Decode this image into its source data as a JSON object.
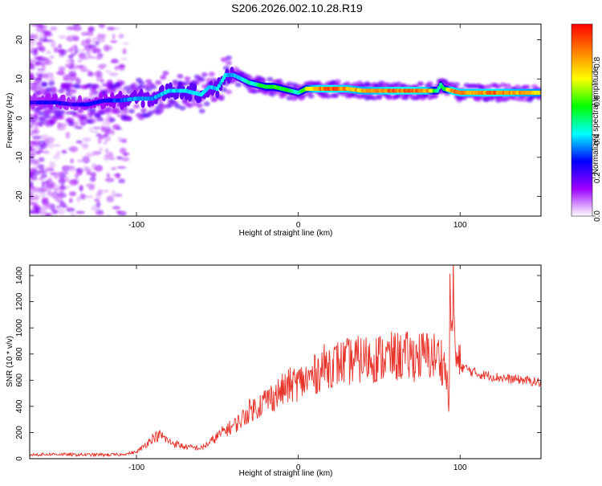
{
  "title": "S206.2026.002.10.28.R19",
  "chart_data": [
    {
      "type": "heatmap",
      "xlabel": "Height of straight line (km)",
      "ylabel": "Frequency (Hz)",
      "xlim": [
        -166,
        150
      ],
      "ylim": [
        -25,
        24
      ],
      "xticks": [
        "-100",
        "0",
        "100"
      ],
      "xtick_values": [
        -100,
        0,
        100
      ],
      "yticks": [
        "20",
        "10",
        "0",
        "-10",
        "-20"
      ],
      "ytick_values": [
        20,
        10,
        0,
        -10,
        -20
      ],
      "colorbar": {
        "label": "Normalized spectral amplitude",
        "range": [
          0,
          1
        ],
        "ticks": [
          "0.0",
          "0.2",
          "0.4",
          "0.6",
          "0.8"
        ],
        "tick_values": [
          0,
          0.2,
          0.4,
          0.6,
          0.8
        ],
        "colormap": [
          "#ffffff",
          "#9d00ff",
          "#0000ff",
          "#00ffff",
          "#00ff00",
          "#ffff00",
          "#ff8000",
          "#ff0000"
        ]
      },
      "ridge": {
        "x": [
          -166,
          -150,
          -140,
          -130,
          -120,
          -110,
          -100,
          -90,
          -80,
          -70,
          -60,
          -55,
          -50,
          -45,
          -40,
          -35,
          -30,
          -25,
          -20,
          -15,
          -10,
          -5,
          0,
          5,
          10,
          20,
          30,
          40,
          50,
          60,
          70,
          80,
          86,
          88,
          90,
          95,
          100,
          110,
          120,
          130,
          140,
          150
        ],
        "y": [
          4,
          4,
          3.5,
          3.5,
          4.5,
          4.5,
          5,
          5,
          7,
          7,
          6,
          8,
          7.5,
          11,
          11,
          10,
          9,
          8.5,
          8,
          8,
          7.5,
          7,
          6.5,
          7.5,
          7.5,
          7.5,
          7.5,
          7,
          7,
          7,
          7,
          7,
          7,
          8.5,
          7.5,
          7,
          6.5,
          6.5,
          6.5,
          6.5,
          6.5,
          6.5
        ],
        "amp": [
          0.25,
          0.3,
          0.25,
          0.3,
          0.3,
          0.35,
          0.4,
          0.4,
          0.45,
          0.45,
          0.45,
          0.4,
          0.45,
          0.45,
          0.4,
          0.45,
          0.5,
          0.55,
          0.6,
          0.65,
          0.6,
          0.55,
          0.5,
          0.7,
          0.9,
          0.95,
          0.9,
          0.85,
          0.9,
          0.95,
          0.95,
          0.9,
          0.5,
          0.55,
          0.55,
          0.95,
          0.9,
          0.9,
          0.95,
          0.9,
          0.85,
          0.8
        ]
      }
    },
    {
      "type": "line",
      "xlabel": "Height of straight line (km)",
      "ylabel": "SNR (10 * v/v)",
      "xlim": [
        -166,
        150
      ],
      "ylim": [
        0,
        1480
      ],
      "xticks": [
        "-100",
        "0",
        "100"
      ],
      "xtick_values": [
        -100,
        0,
        100
      ],
      "yticks": [
        "0",
        "200",
        "400",
        "600",
        "800",
        "1000",
        "1200",
        "1400"
      ],
      "ytick_values": [
        0,
        200,
        400,
        600,
        800,
        1000,
        1200,
        1400
      ],
      "color": "#e8332a",
      "series": [
        {
          "x": [
            -166,
            -150,
            -140,
            -130,
            -120,
            -110,
            -100,
            -95,
            -90,
            -85,
            -80,
            -70,
            -60,
            -55,
            -50,
            -45,
            -40,
            -35,
            -30,
            -25,
            -20,
            -15,
            -10,
            -5,
            0,
            5,
            10,
            15,
            20,
            30,
            40,
            50,
            60,
            70,
            80,
            85,
            88,
            90,
            92,
            93,
            94,
            95,
            96,
            97,
            98,
            100,
            110,
            120,
            130,
            140,
            150
          ],
          "y": [
            30,
            35,
            30,
            30,
            30,
            30,
            50,
            100,
            160,
            180,
            130,
            90,
            80,
            120,
            170,
            220,
            250,
            300,
            370,
            400,
            450,
            480,
            520,
            560,
            580,
            600,
            640,
            700,
            720,
            740,
            760,
            770,
            780,
            780,
            790,
            780,
            770,
            720,
            600,
            350,
            1470,
            800,
            1400,
            760,
            730,
            710,
            650,
            630,
            610,
            600,
            580
          ]
        }
      ]
    }
  ]
}
